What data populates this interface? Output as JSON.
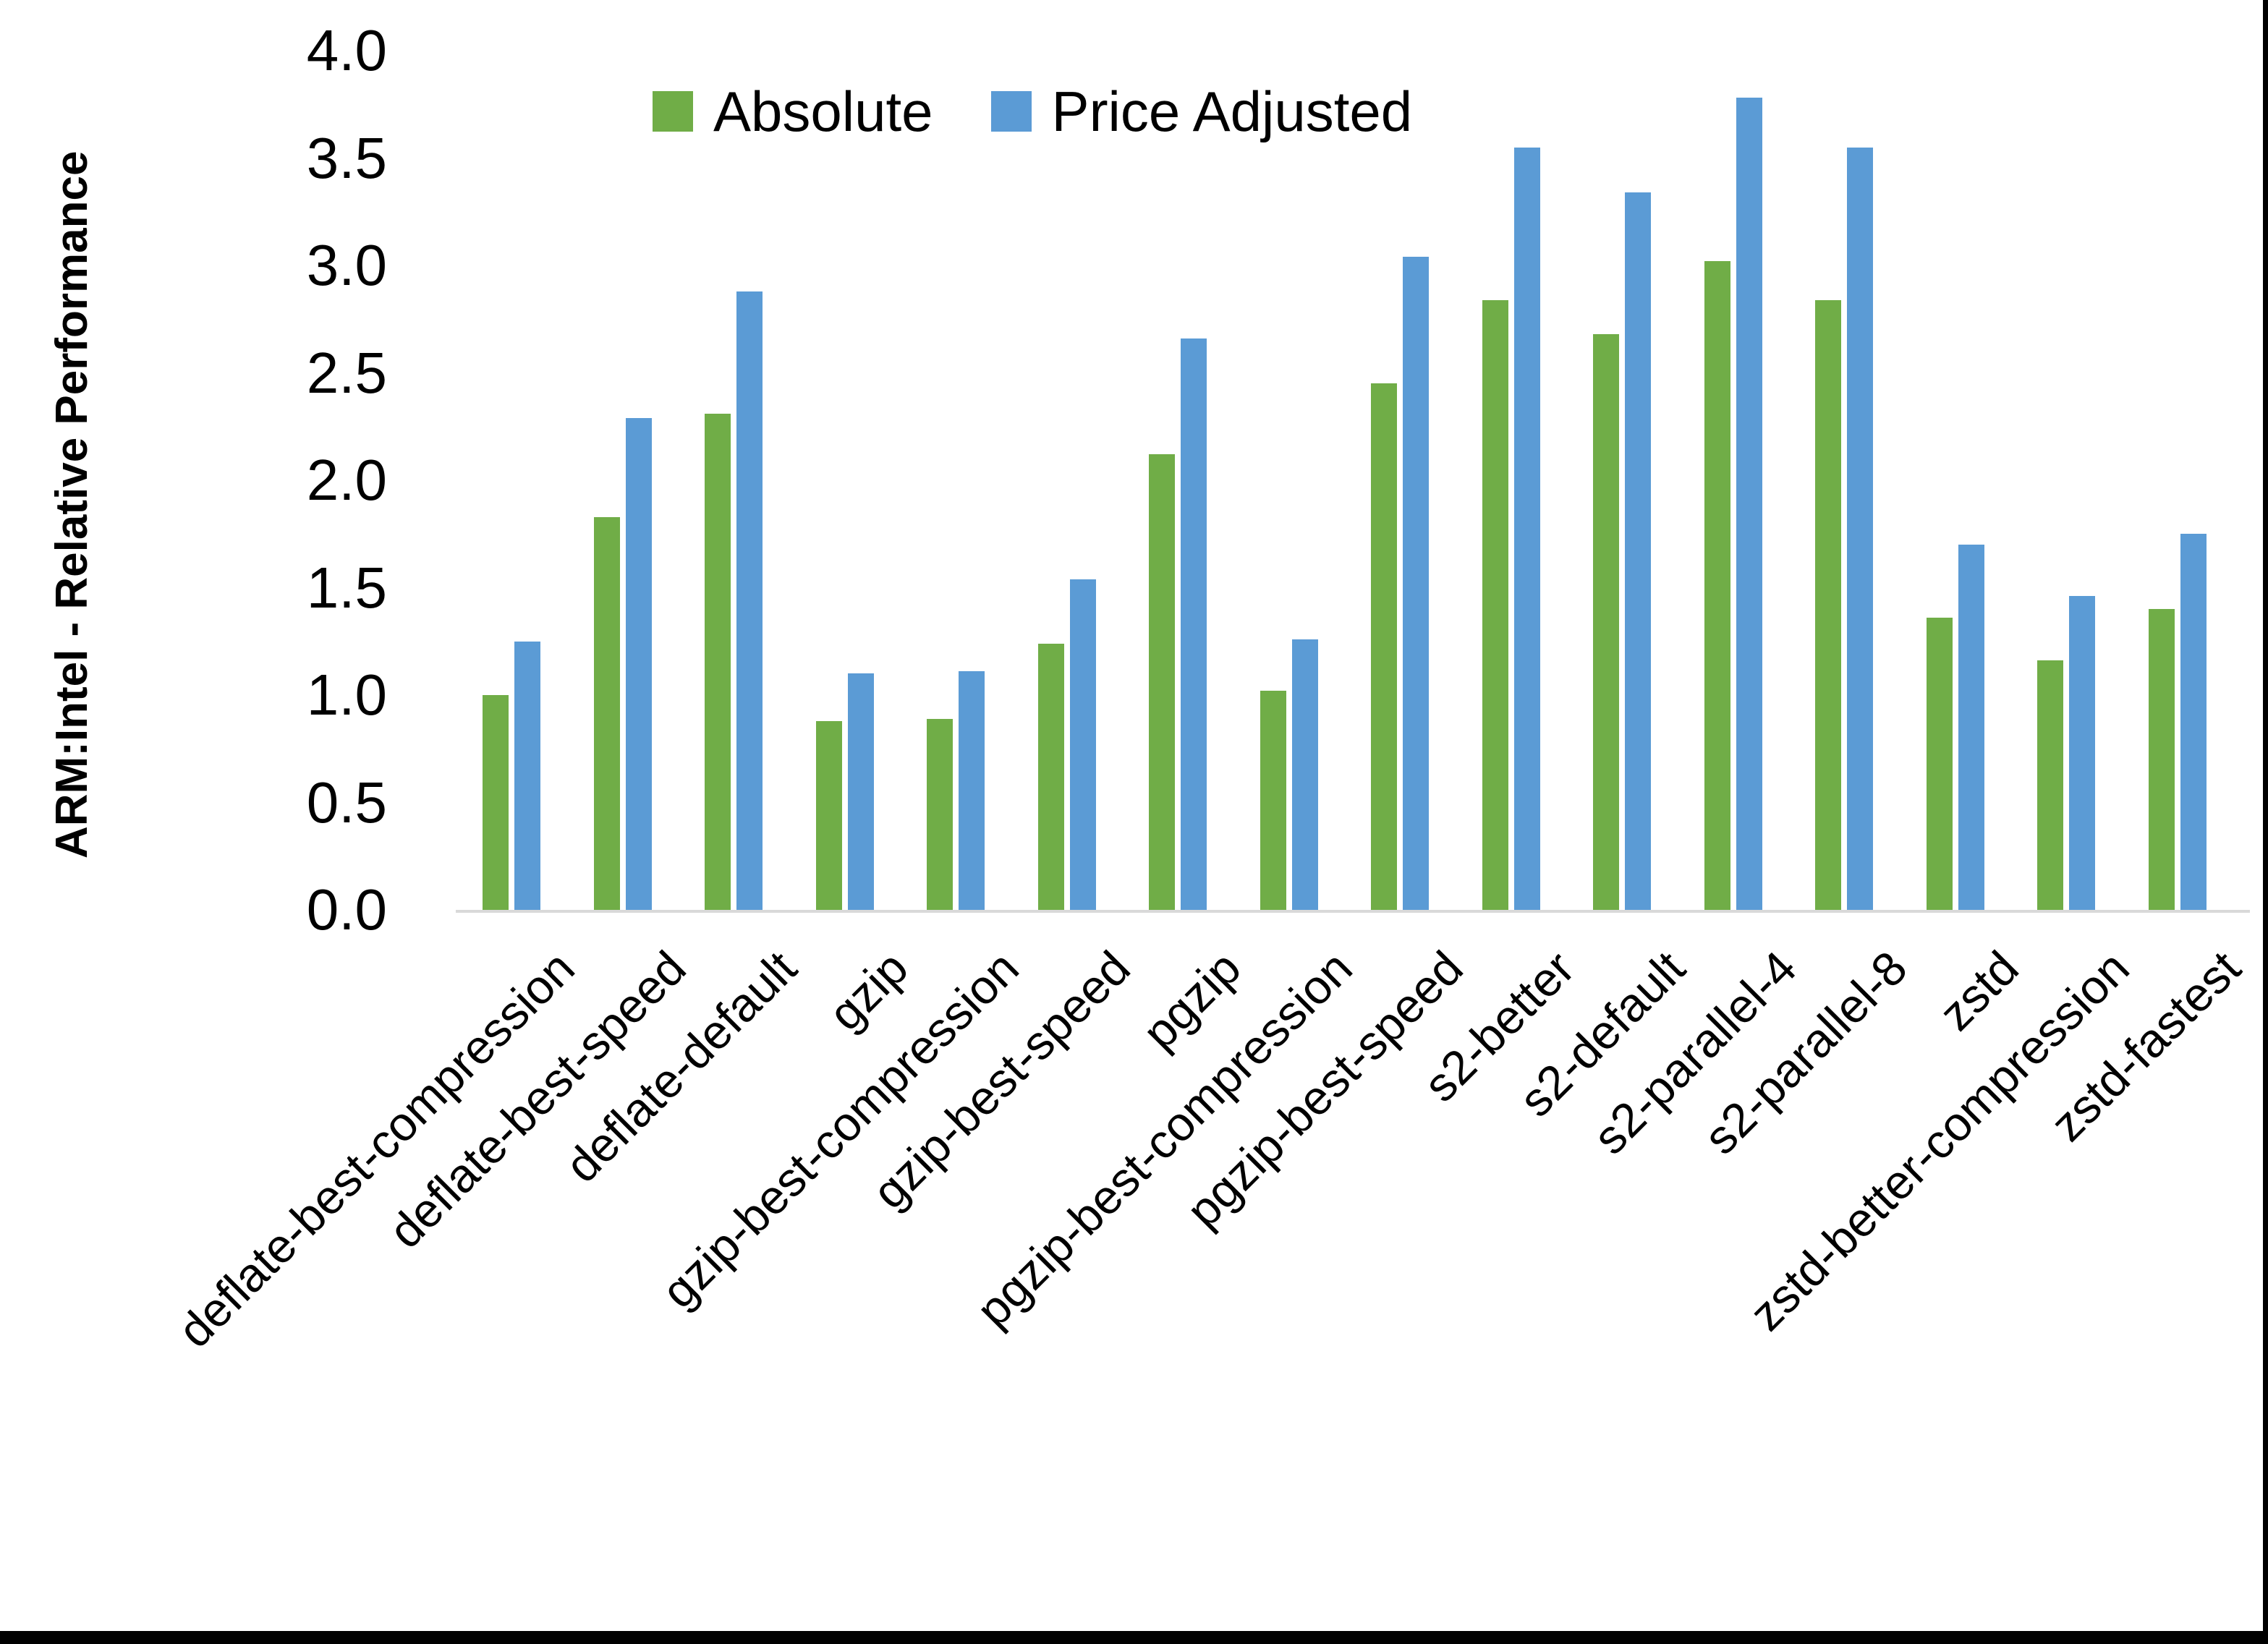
{
  "chart_data": {
    "type": "bar",
    "title": "",
    "xlabel": "",
    "ylabel": "ARM:Intel - Relative Performance",
    "ylim": [
      0.0,
      4.0
    ],
    "y_ticks": [
      "0.0",
      "0.5",
      "1.0",
      "1.5",
      "2.0",
      "2.5",
      "3.0",
      "3.5",
      "4.0"
    ],
    "grid": false,
    "legend_position": "top",
    "categories": [
      "deflate-best-compression",
      "deflate-best-speed",
      "deflate-default",
      "gzip",
      "gzip-best-compression",
      "gzip-best-speed",
      "pgzip",
      "pgzip-best-compression",
      "pgzip-best-speed",
      "s2-better",
      "s2-default",
      "s2-parallel-4",
      "s2-parallel-8",
      "zstd",
      "zstd-better-compression",
      "zstd-fastest"
    ],
    "series": [
      {
        "name": "Absolute",
        "color": "#70AD47",
        "values": [
          1.0,
          1.83,
          2.31,
          0.88,
          0.89,
          1.24,
          2.12,
          1.02,
          2.45,
          2.84,
          2.68,
          3.02,
          2.84,
          1.36,
          1.16,
          1.4
        ]
      },
      {
        "name": "Price Adjusted",
        "color": "#5B9BD5",
        "values": [
          1.25,
          2.29,
          2.88,
          1.1,
          1.11,
          1.54,
          2.66,
          1.26,
          3.04,
          3.55,
          3.34,
          3.78,
          3.55,
          1.7,
          1.46,
          1.75
        ]
      }
    ],
    "axis_line_color": "#D9D9D9"
  }
}
